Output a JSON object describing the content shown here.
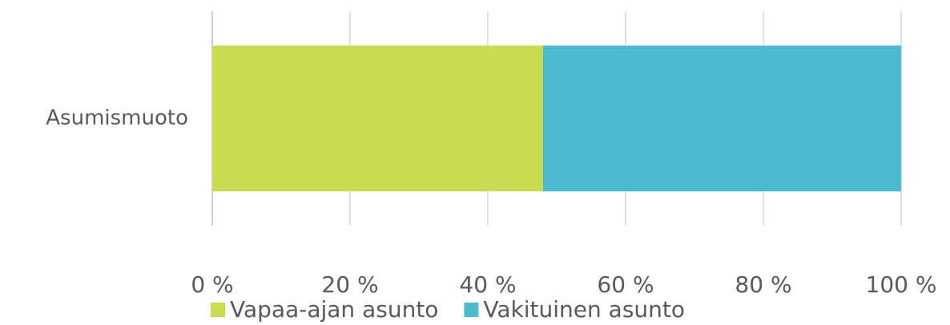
{
  "chart_data": {
    "type": "stacked_barh",
    "categories": [
      "Asumismuoto"
    ],
    "series": [
      {
        "name": "Vapaa-ajan asunto",
        "color": "#c9dc50",
        "values": [
          48
        ]
      },
      {
        "name": "Vakituinen asunto",
        "color": "#4bbbd0",
        "values": [
          52
        ]
      }
    ],
    "xlim": [
      0,
      100
    ],
    "xticks": [
      {
        "value": 0,
        "label": "0 %"
      },
      {
        "value": 20,
        "label": "20 %"
      },
      {
        "value": 40,
        "label": "40 %"
      },
      {
        "value": 60,
        "label": "60 %"
      },
      {
        "value": 80,
        "label": "80 %"
      },
      {
        "value": 100,
        "label": "100 %"
      }
    ],
    "grid": true,
    "legend": "bottom"
  }
}
